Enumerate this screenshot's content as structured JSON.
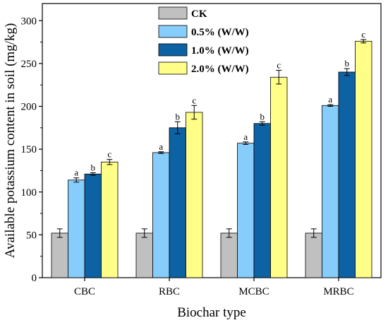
{
  "chart_data": {
    "type": "bar",
    "title": "",
    "xlabel": "Biochar type",
    "ylabel": "Available potassium content in soil (mg/kg)",
    "ylim": [
      0,
      320
    ],
    "yticks": [
      0,
      50,
      100,
      150,
      200,
      250,
      300
    ],
    "categories": [
      "CBC",
      "RBC",
      "MCBC",
      "MRBC"
    ],
    "legend_position": "top-center",
    "grid": false,
    "series": [
      {
        "name": "CK",
        "color": "#c0c0c0",
        "values": [
          52,
          52,
          52,
          52
        ],
        "errors": [
          5,
          5,
          5,
          5
        ],
        "labels": [
          "",
          "",
          "",
          ""
        ]
      },
      {
        "name": "0.5% (W/W)",
        "color": "#87cdfb",
        "values": [
          114,
          146,
          157,
          201
        ],
        "errors": [
          2.5,
          1,
          1.5,
          1
        ],
        "labels": [
          "a",
          "a",
          "a",
          "a"
        ]
      },
      {
        "name": "1.0% (W/W)",
        "color": "#0d62a4",
        "values": [
          121,
          175,
          180,
          240
        ],
        "errors": [
          1.5,
          7,
          2,
          4
        ],
        "labels": [
          "b",
          "b",
          "b",
          "b"
        ]
      },
      {
        "name": "2.0% (W/W)",
        "color": "#fffe87",
        "values": [
          135,
          193,
          234,
          276
        ],
        "errors": [
          3,
          8,
          8,
          2
        ],
        "labels": [
          "c",
          "c",
          "c",
          "c"
        ]
      }
    ]
  }
}
